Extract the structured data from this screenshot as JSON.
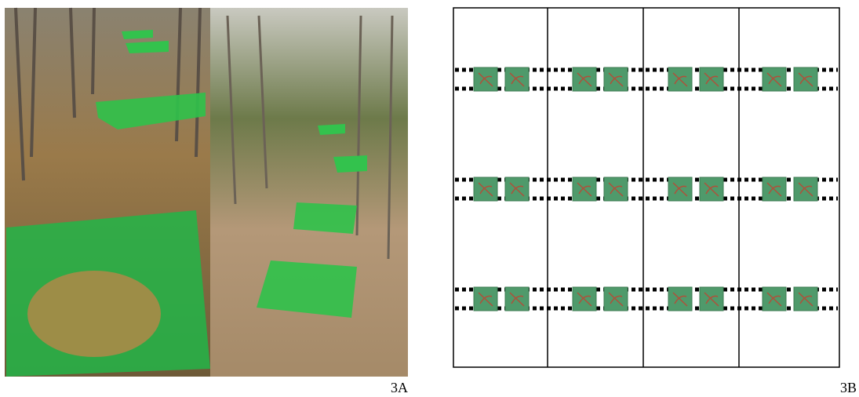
{
  "labels": {
    "left": "3A",
    "right": "3B"
  }
}
